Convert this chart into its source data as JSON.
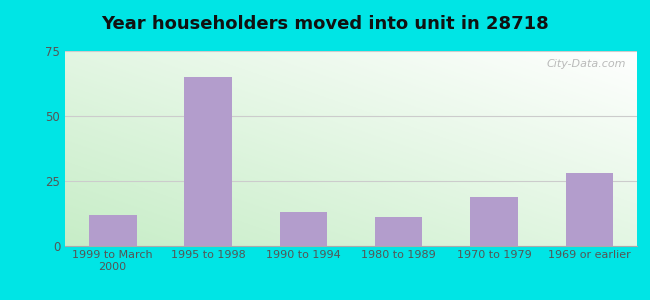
{
  "categories": [
    "1999 to March\n2000",
    "1995 to 1998",
    "1990 to 1994",
    "1980 to 1989",
    "1970 to 1979",
    "1969 or earlier"
  ],
  "values": [
    12,
    65,
    13,
    11,
    19,
    28
  ],
  "bar_color": "#b39dcc",
  "title": "Year householders moved into unit in 28718",
  "title_fontsize": 13,
  "ylim": [
    0,
    75
  ],
  "yticks": [
    0,
    25,
    50,
    75
  ],
  "background_outer": "#00e5e5",
  "background_inner_topleft": "#c8edc8",
  "background_inner_topright": "#e8f4f8",
  "background_inner_bottomleft": "#b8e8b8",
  "background_inner_bottomright": "#ffffff",
  "grid_color": "#cccccc",
  "watermark": "City-Data.com"
}
